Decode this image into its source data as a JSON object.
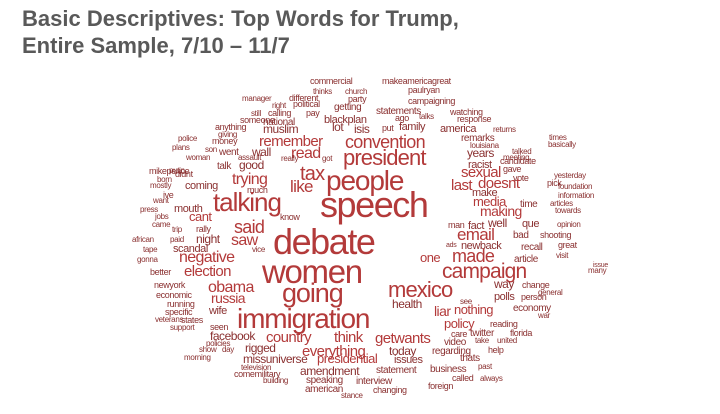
{
  "title_lines": [
    "Basic Descriptives: Top Words for Trump,",
    "Entire Sample, 7/10 – 11/7"
  ],
  "words": [
    "commercial",
    "makeamericagreat",
    "thinks",
    "church",
    "paulryan",
    "manager",
    "different",
    "party",
    "right",
    "political",
    "getting",
    "campaigning",
    "still",
    "calling",
    "pay",
    "statements",
    "watching",
    "someone",
    "national",
    "blackplan",
    "ago",
    "talks",
    "response",
    "giving",
    "anything",
    "muslim",
    "lot",
    "isis",
    "put",
    "family",
    "america",
    "returns",
    "police",
    "money",
    "remember",
    "convention",
    "remarks",
    "times",
    "plans",
    "son",
    "went",
    "wall",
    "read",
    "president",
    "louisiana",
    "basically",
    "woman",
    "assault",
    "really",
    "got",
    "years",
    "talked",
    "putin",
    "talk",
    "good",
    "tax",
    "racist",
    "candidate",
    "meeting",
    "didnt",
    "gave",
    "yesterday",
    "mikepence",
    "trying",
    "people",
    "sexual",
    "vote",
    "pick",
    "foundation",
    "mostly",
    "coming",
    "much",
    "like",
    "last",
    "doesnt",
    "make",
    "information",
    "born",
    "ive",
    "mouth",
    "talking",
    "speech",
    "media",
    "time",
    "articles",
    "want",
    "press",
    "jobs",
    "cant",
    "know",
    "making",
    "towards",
    "came",
    "trip",
    "rally",
    "said",
    "man",
    "fact",
    "well",
    "que",
    "opinion",
    "african",
    "paid",
    "night",
    "saw",
    "debate",
    "email",
    "bad",
    "shooting",
    "tape",
    "scandal",
    "vice",
    "ads",
    "newback",
    "recall",
    "great",
    "gonna",
    "negative",
    "women",
    "one",
    "made",
    "article",
    "visit",
    "issue",
    "many",
    "better",
    "election",
    "campaign",
    "newyork",
    "obama",
    "mexico",
    "way",
    "change",
    "economic",
    "russia",
    "going",
    "polls",
    "person",
    "general",
    "running",
    "health",
    "see",
    "economy",
    "specific",
    "wife",
    "states",
    "immigration",
    "liar",
    "nothing",
    "war",
    "veterans",
    "support",
    "seen",
    "policy",
    "reading",
    "facebook",
    "country",
    "think",
    "care",
    "twitter",
    "florida",
    "policies",
    "show",
    "day",
    "rigged",
    "everything",
    "getwants",
    "video",
    "take",
    "united",
    "today",
    "regarding",
    "help",
    "morning",
    "missuniverse",
    "presidential",
    "issues",
    "thats",
    "past",
    "television",
    "statement",
    "business",
    "comemilitary",
    "amendment",
    "called",
    "always",
    "building",
    "speaking",
    "interview",
    "foreign",
    "american",
    "changing",
    "stance"
  ]
}
